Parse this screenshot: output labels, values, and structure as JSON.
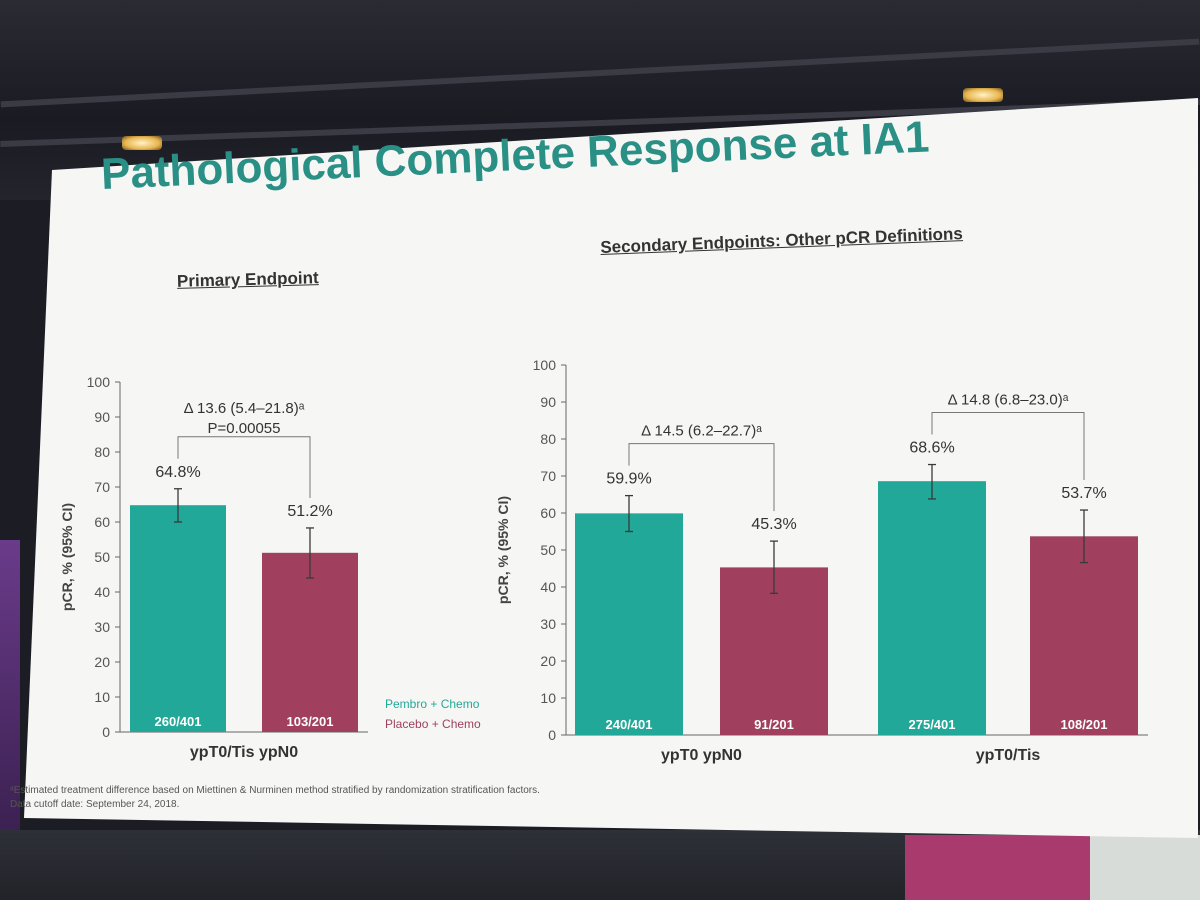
{
  "slide": {
    "title": "Pathological Complete Response at IA1",
    "primary_heading": "Primary Endpoint",
    "secondary_heading": "Secondary Endpoints: Other pCR Definitions",
    "footnote_1": "ᵃEstimated treatment difference based on Miettinen & Nurminen method stratified by randomization stratification factors.",
    "footnote_2": "Data cutoff date: September 24, 2018."
  },
  "legend": {
    "pembro_label": "Pembro + Chemo",
    "placebo_label": "Placebo + Chemo"
  },
  "colors": {
    "pembro": "#22a898",
    "placebo": "#a0405e",
    "title": "#2a8f84",
    "text": "#333333",
    "slide_bg": "#f6f7f5"
  },
  "chart_data": [
    {
      "type": "bar",
      "ylabel": "pCR, % (95% CI)",
      "ylim": [
        0,
        100
      ],
      "yticks": [
        0,
        10,
        20,
        30,
        40,
        50,
        60,
        70,
        80,
        90,
        100
      ],
      "groups": [
        {
          "label": "ypT0/Tis ypN0",
          "delta": "Δ 13.6 (5.4–21.8)ᵃ",
          "p_value": "P=0.00055",
          "bars": [
            {
              "series": "Pembro + Chemo",
              "value": 64.8,
              "label": "64.8%",
              "ci": [
                60.0,
                69.5
              ],
              "n": "260/401"
            },
            {
              "series": "Placebo + Chemo",
              "value": 51.2,
              "label": "51.2%",
              "ci": [
                44.0,
                58.3
              ],
              "n": "103/201"
            }
          ]
        }
      ]
    },
    {
      "type": "bar",
      "ylabel": "pCR, % (95% CI)",
      "ylim": [
        0,
        100
      ],
      "yticks": [
        0,
        10,
        20,
        30,
        40,
        50,
        60,
        70,
        80,
        90,
        100
      ],
      "groups": [
        {
          "label": "ypT0 ypN0",
          "delta": "Δ 14.5 (6.2–22.7)ᵃ",
          "bars": [
            {
              "series": "Pembro + Chemo",
              "value": 59.9,
              "label": "59.9%",
              "ci": [
                55.0,
                64.7
              ],
              "n": "240/401"
            },
            {
              "series": "Placebo + Chemo",
              "value": 45.3,
              "label": "45.3%",
              "ci": [
                38.3,
                52.4
              ],
              "n": "91/201"
            }
          ]
        },
        {
          "label": "ypT0/Tis",
          "delta": "Δ 14.8 (6.8–23.0)ᵃ",
          "bars": [
            {
              "series": "Pembro + Chemo",
              "value": 68.6,
              "label": "68.6%",
              "ci": [
                63.8,
                73.1
              ],
              "n": "275/401"
            },
            {
              "series": "Placebo + Chemo",
              "value": 53.7,
              "label": "53.7%",
              "ci": [
                46.6,
                60.8
              ],
              "n": "108/201"
            }
          ]
        }
      ]
    }
  ]
}
